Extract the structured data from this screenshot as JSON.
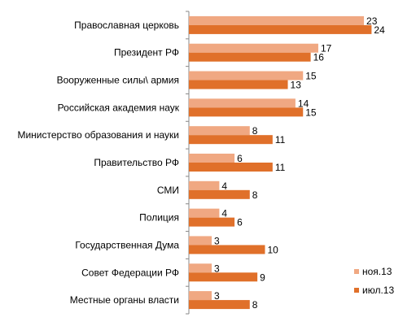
{
  "chart_data": {
    "type": "bar",
    "orientation": "horizontal",
    "categories": [
      "Православная церковь",
      "Президент РФ",
      "Вооруженные силы\\ армия",
      "Российская академия наук",
      "Министерство образования и науки",
      "Правительство РФ",
      "СМИ",
      "Полиция",
      "Государственная Дума",
      "Совет Федерации РФ",
      "Местные органы власти"
    ],
    "series": [
      {
        "name": "ноя.13",
        "values": [
          23,
          17,
          15,
          14,
          8,
          6,
          4,
          4,
          3,
          3,
          3
        ],
        "color": "#F0A882"
      },
      {
        "name": "июл.13",
        "values": [
          24,
          16,
          13,
          15,
          11,
          11,
          8,
          6,
          10,
          9,
          8
        ],
        "color": "#E0702A"
      }
    ],
    "xlim": [
      0,
      25
    ],
    "grid": false,
    "legend_position": "bottom-right"
  }
}
